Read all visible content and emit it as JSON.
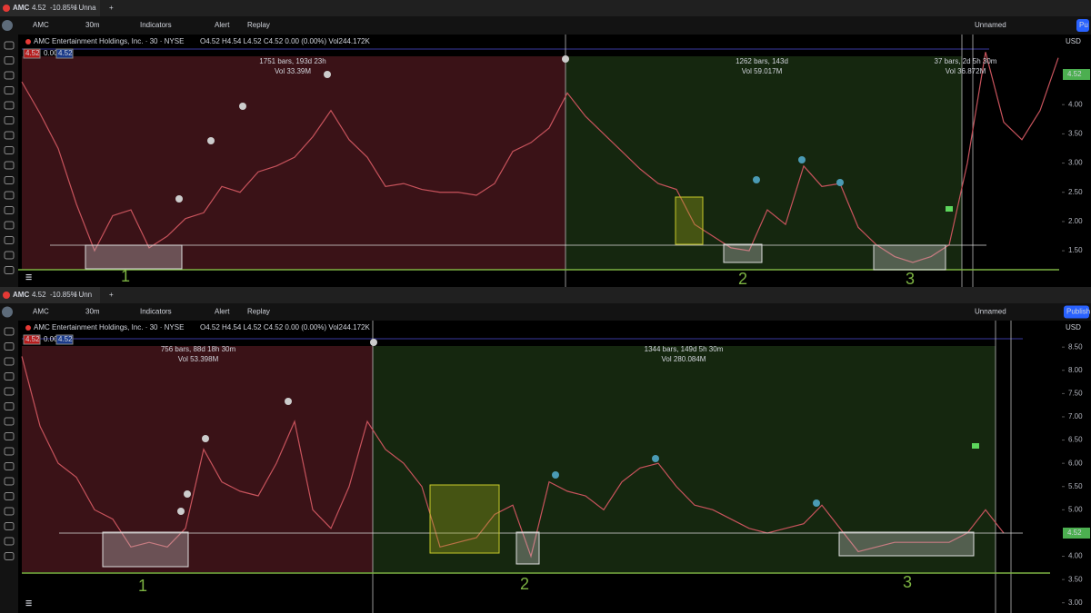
{
  "panes": [
    {
      "tab": {
        "symbol": "AMC",
        "price": "4.52",
        "change": "-10.85%",
        "layout": "/ Unna"
      },
      "toolbar": {
        "symbol": "AMC",
        "interval": "30m",
        "indicators": "Indicators",
        "alert": "Alert",
        "replay": "Replay",
        "layout_name": "Unnamed",
        "publish": "Pu"
      },
      "legend": {
        "name": "AMC Entertainment Holdings, Inc. · 30 · NYSE",
        "ohlc": "O4.52 H4.54 L4.52 C4.52 0.00 (0.00%) Vol244.172K",
        "bid": "4.52",
        "spread": "0.00",
        "ask": "4.52"
      },
      "measurements": [
        {
          "bars": "1751 bars, 193d 23h",
          "vol": "Vol 33.39M"
        },
        {
          "bars": "1262 bars, 143d",
          "vol": "Vol 59.017M"
        },
        {
          "bars": "37 bars, 2d 5h 30m",
          "vol": "Vol 36.872M"
        }
      ],
      "zone_labels": [
        "1",
        "2",
        "3"
      ],
      "axis": {
        "currency": "USD",
        "last_price": "4.52"
      },
      "price_chart": {
        "type": "line",
        "ylim": [
          0.88,
          5.2
        ],
        "yticks": [
          {
            "value": 4,
            "label": "4.00"
          },
          {
            "value": 3.5,
            "label": "3.50"
          },
          {
            "value": 3,
            "label": "3.00"
          },
          {
            "value": 2.5,
            "label": "2.50"
          },
          {
            "value": 2,
            "label": "2.00"
          },
          {
            "value": 1.5,
            "label": "1.50"
          }
        ],
        "values": [
          4.39,
          3.85,
          3.25,
          2.3,
          1.5,
          2.1,
          2.2,
          1.55,
          1.75,
          2.05,
          2.15,
          2.6,
          2.5,
          2.85,
          2.95,
          3.1,
          3.45,
          3.9,
          3.4,
          3.1,
          2.6,
          2.65,
          2.55,
          2.5,
          2.5,
          2.45,
          2.65,
          3.2,
          3.35,
          3.6,
          4.2,
          3.8,
          3.5,
          3.2,
          2.9,
          2.65,
          2.55,
          1.95,
          1.75,
          1.55,
          1.5,
          2.2,
          1.95,
          2.95,
          2.6,
          2.65,
          1.9,
          1.6,
          1.4,
          1.3,
          1.4,
          1.6,
          3.0,
          4.9,
          3.7,
          3.4,
          3.9,
          4.8
        ]
      }
    },
    {
      "tab": {
        "symbol": "AMC",
        "price": "4.52",
        "change": "-10.85%",
        "layout": "/ Unn"
      },
      "toolbar": {
        "symbol": "AMC",
        "interval": "30m",
        "indicators": "Indicators",
        "alert": "Alert",
        "replay": "Replay",
        "layout_name": "Unnamed",
        "publish": "Publish"
      },
      "legend": {
        "name": "AMC Entertainment Holdings, Inc. · 30 · NYSE",
        "ohlc": "O4.52 H4.54 L4.52 C4.52 0.00 (0.00%) Vol244.172K",
        "bid": "4.52",
        "spread": "0.00",
        "ask": "4.52"
      },
      "measurements": [
        {
          "bars": "756 bars, 88d 18h 30m",
          "vol": "Vol 53.398M"
        },
        {
          "bars": "1344 bars, 149d 5h 30m",
          "vol": "Vol 280.084M"
        }
      ],
      "zone_labels": [
        "1",
        "2",
        "3"
      ],
      "axis": {
        "currency": "USD",
        "last_price": "4.52"
      },
      "price_chart": {
        "type": "line",
        "ylim": [
          2.78,
          9.07
        ],
        "yticks": [
          {
            "value": 8.5,
            "label": "8.50"
          },
          {
            "value": 8,
            "label": "8.00"
          },
          {
            "value": 7.5,
            "label": "7.50"
          },
          {
            "value": 7,
            "label": "7.00"
          },
          {
            "value": 6.5,
            "label": "6.50"
          },
          {
            "value": 6,
            "label": "6.00"
          },
          {
            "value": 5.5,
            "label": "5.50"
          },
          {
            "value": 5,
            "label": "5.00"
          },
          {
            "value": 4,
            "label": "4.00"
          },
          {
            "value": 3.5,
            "label": "3.50"
          },
          {
            "value": 3,
            "label": "3.00"
          }
        ],
        "values": [
          8.3,
          6.8,
          6.0,
          5.7,
          5.0,
          4.8,
          4.2,
          4.3,
          4.2,
          4.6,
          6.3,
          5.6,
          5.4,
          5.3,
          6.0,
          6.9,
          5.0,
          4.6,
          5.5,
          6.9,
          6.3,
          6.0,
          5.5,
          4.2,
          4.3,
          4.4,
          4.9,
          5.1,
          4.0,
          5.6,
          5.4,
          5.3,
          5.0,
          5.6,
          5.9,
          6.0,
          5.5,
          5.1,
          5.0,
          4.8,
          4.6,
          4.5,
          4.6,
          4.7,
          5.1,
          4.6,
          4.1,
          4.2,
          4.3,
          4.3,
          4.3,
          4.3,
          4.5,
          5.0,
          4.5
        ]
      }
    }
  ]
}
